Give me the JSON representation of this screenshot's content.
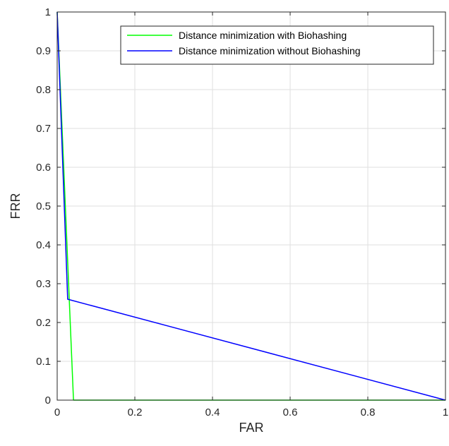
{
  "chart_data": {
    "type": "line",
    "xlabel": "FAR",
    "ylabel": "FRR",
    "xlim": [
      0,
      1
    ],
    "ylim": [
      0,
      1
    ],
    "xticks": [
      "0",
      "0.2",
      "0.4",
      "0.6",
      "0.8",
      "1"
    ],
    "yticks": [
      "0",
      "0.1",
      "0.2",
      "0.3",
      "0.4",
      "0.5",
      "0.6",
      "0.7",
      "0.8",
      "0.9",
      "1"
    ],
    "grid": true,
    "legend_position": "top-right",
    "series": [
      {
        "name": "Distance minimization with Biohashing",
        "color": "#00ff00",
        "x": [
          0,
          0.042,
          1
        ],
        "y": [
          1,
          0,
          0
        ]
      },
      {
        "name": "Distance minimization without Biohashing",
        "color": "#0000ff",
        "x": [
          0,
          0.027,
          1
        ],
        "y": [
          1,
          0.26,
          0
        ]
      }
    ]
  }
}
